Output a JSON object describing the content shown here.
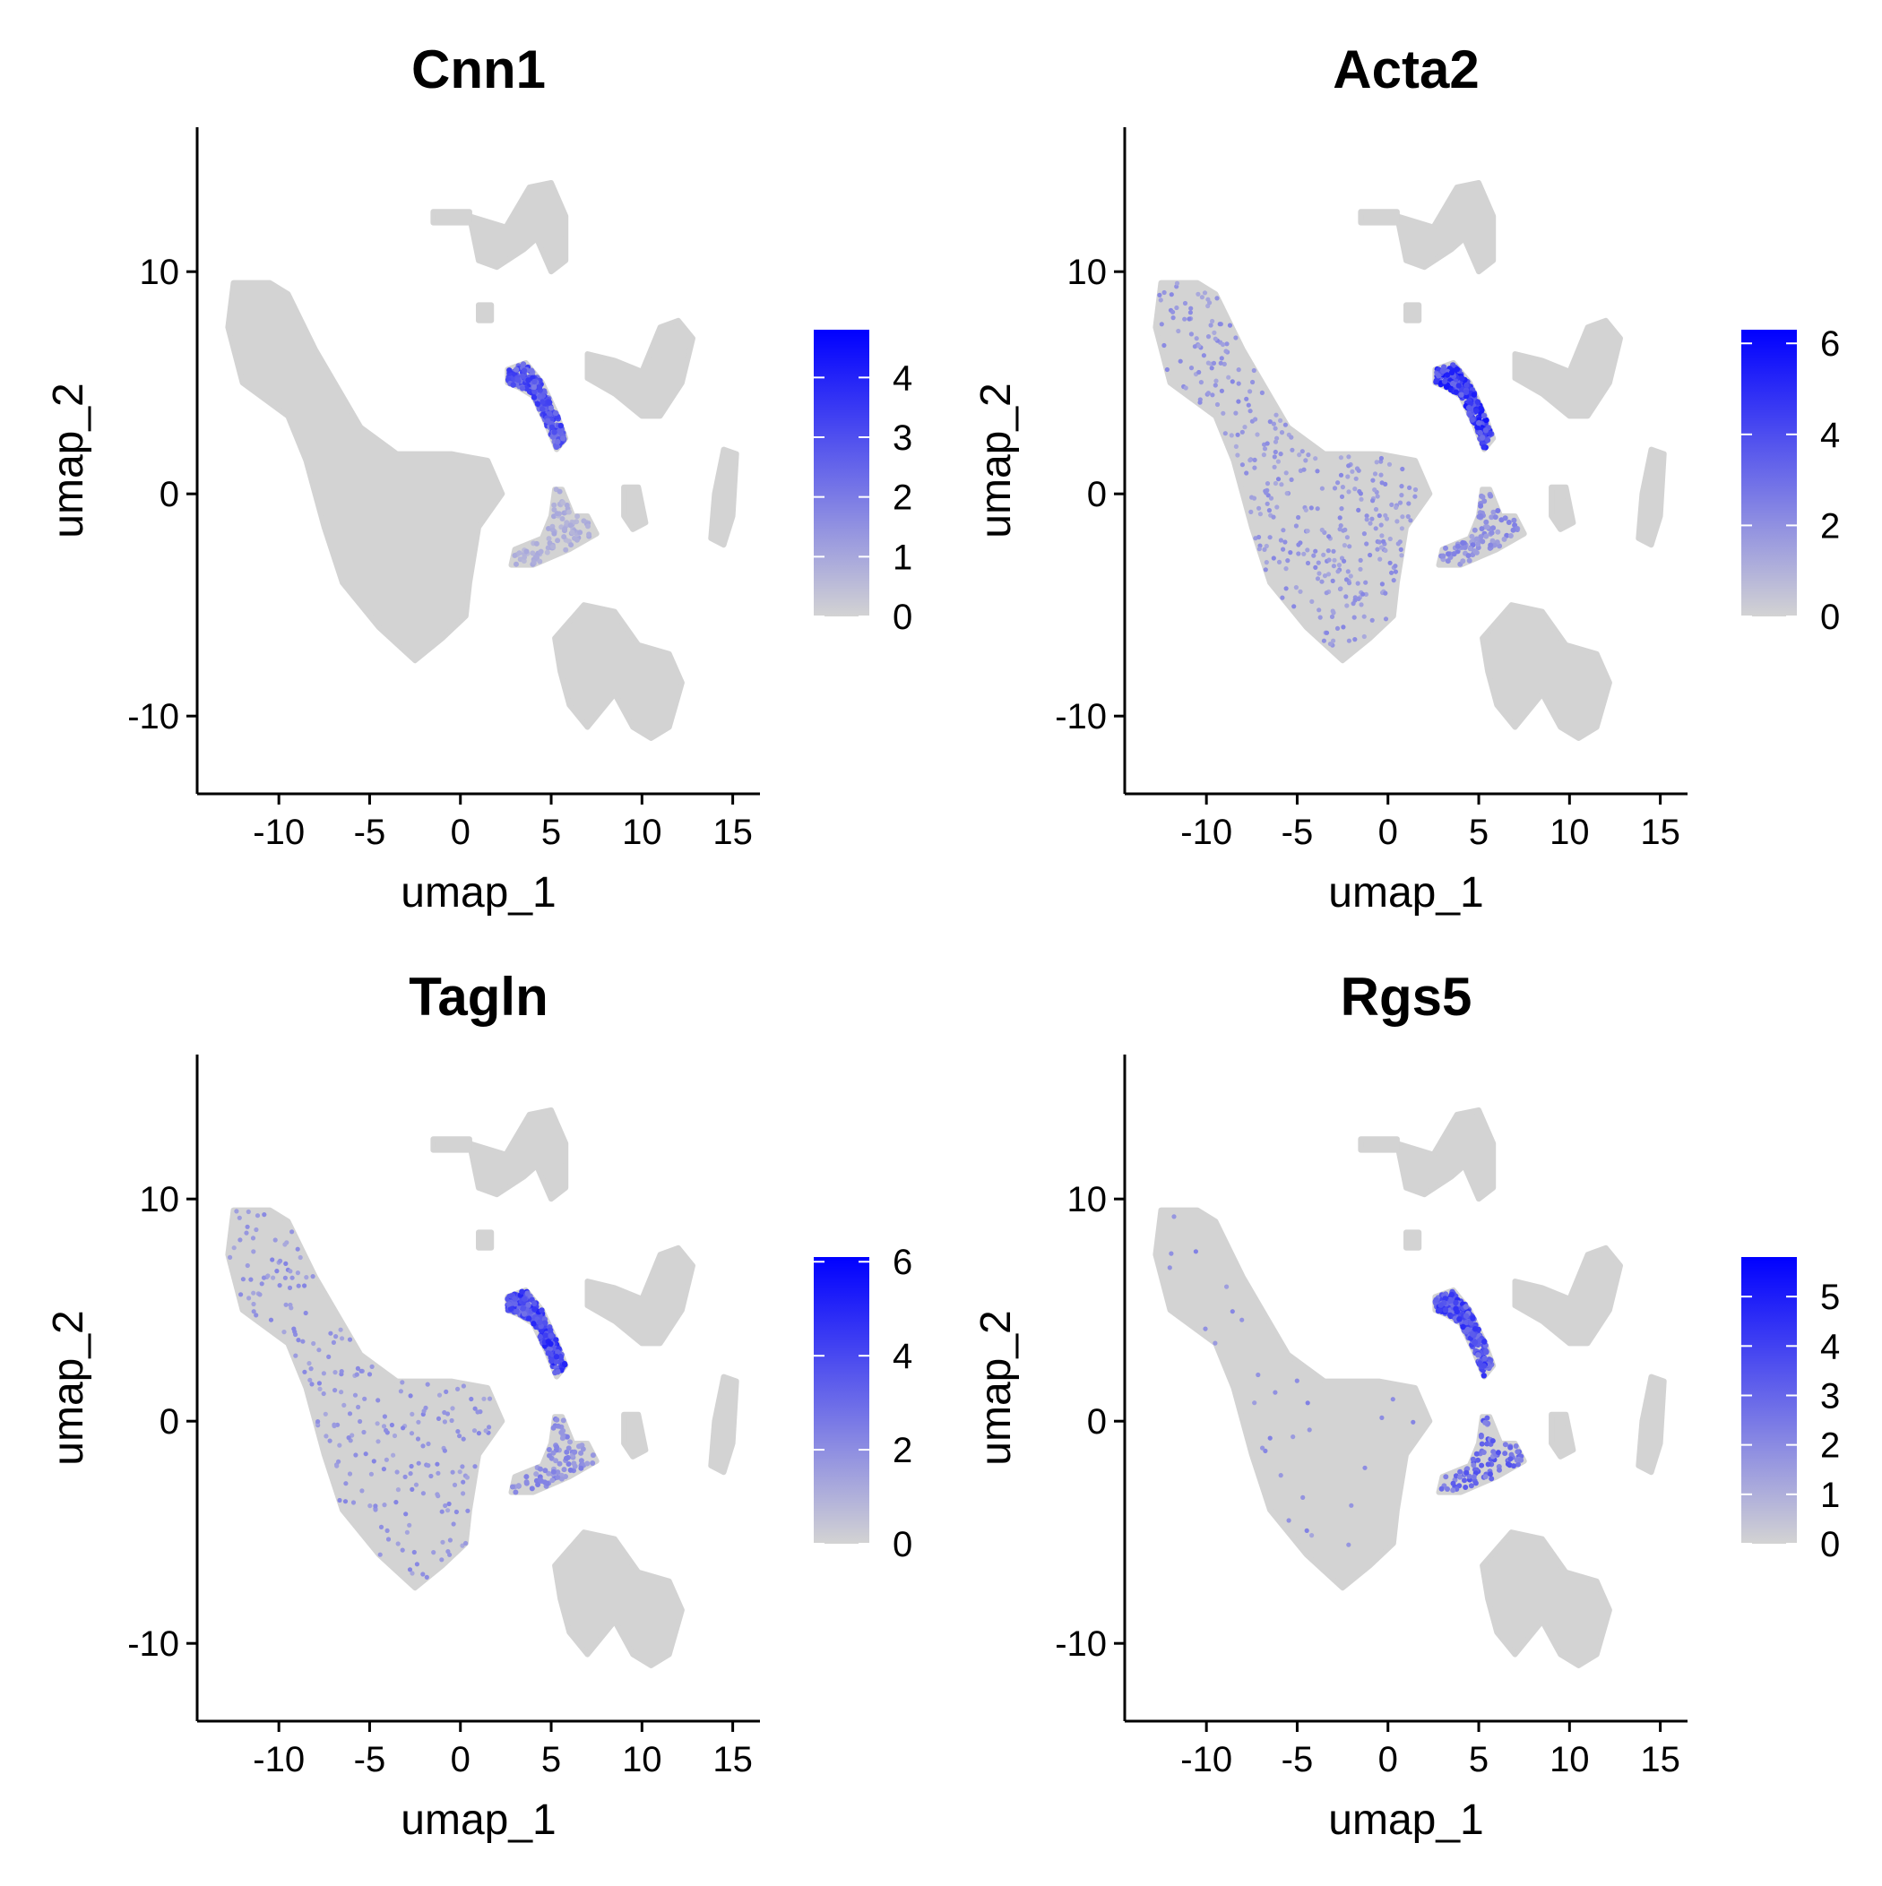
{
  "colors": {
    "low": "#d3d3d3",
    "high": "#0000ff",
    "axis": "#000000"
  },
  "chart_data": [
    {
      "type": "scatter",
      "title": "Cnn1",
      "xlabel": "umap_1",
      "ylabel": "umap_2",
      "xlim": [
        -14.5,
        16.5
      ],
      "ylim": [
        -13.5,
        16.5
      ],
      "xticks": [
        -10,
        -5,
        0,
        5,
        10,
        15
      ],
      "yticks": [
        -10,
        0,
        10
      ],
      "xtick_labels": [
        "-10",
        "-5",
        "0",
        "5",
        "10",
        "15"
      ],
      "ytick_labels": [
        "-10",
        "0",
        "10"
      ],
      "colorbar": {
        "min": 0,
        "max": 4.8,
        "ticks": [
          0,
          1,
          2,
          3,
          4
        ],
        "tick_labels": [
          "0",
          "1",
          "2",
          "3",
          "4"
        ]
      },
      "expression": {
        "cluster": 3.5,
        "lower_cluster": 1.0,
        "background": 0.0,
        "sparse_fraction": 0.0
      }
    },
    {
      "type": "scatter",
      "title": "Acta2",
      "xlabel": "umap_1",
      "ylabel": "umap_2",
      "xlim": [
        -14.5,
        16.5
      ],
      "ylim": [
        -13.5,
        16.5
      ],
      "xticks": [
        -10,
        -5,
        0,
        5,
        10,
        15
      ],
      "yticks": [
        -10,
        0,
        10
      ],
      "xtick_labels": [
        "-10",
        "-5",
        "0",
        "5",
        "10",
        "15"
      ],
      "ytick_labels": [
        "-10",
        "0",
        "10"
      ],
      "colorbar": {
        "min": 0,
        "max": 6.3,
        "ticks": [
          0,
          2,
          4,
          6
        ],
        "tick_labels": [
          "0",
          "2",
          "4",
          "6"
        ]
      },
      "expression": {
        "cluster": 5.5,
        "lower_cluster": 2.5,
        "background": 0.0,
        "sparse_fraction": 0.12
      }
    },
    {
      "type": "scatter",
      "title": "Tagln",
      "xlabel": "umap_1",
      "ylabel": "umap_2",
      "xlim": [
        -14.5,
        16.5
      ],
      "ylim": [
        -13.5,
        16.5
      ],
      "xticks": [
        -10,
        -5,
        0,
        5,
        10,
        15
      ],
      "yticks": [
        -10,
        0,
        10
      ],
      "xtick_labels": [
        "-10",
        "-5",
        "0",
        "5",
        "10",
        "15"
      ],
      "ytick_labels": [
        "-10",
        "0",
        "10"
      ],
      "colorbar": {
        "min": 0,
        "max": 6.1,
        "ticks": [
          0,
          2,
          4,
          6
        ],
        "tick_labels": [
          "0",
          "2",
          "4",
          "6"
        ]
      },
      "expression": {
        "cluster": 5.0,
        "lower_cluster": 2.5,
        "background": 0.0,
        "sparse_fraction": 0.08
      }
    },
    {
      "type": "scatter",
      "title": "Rgs5",
      "xlabel": "umap_1",
      "ylabel": "umap_2",
      "xlim": [
        -14.5,
        16.5
      ],
      "ylim": [
        -13.5,
        16.5
      ],
      "xticks": [
        -10,
        -5,
        0,
        5,
        10,
        15
      ],
      "yticks": [
        -10,
        0,
        10
      ],
      "xtick_labels": [
        "-10",
        "-5",
        "0",
        "5",
        "10",
        "15"
      ],
      "ytick_labels": [
        "-10",
        "0",
        "10"
      ],
      "colorbar": {
        "min": 0,
        "max": 5.8,
        "ticks": [
          0,
          1,
          2,
          3,
          4,
          5
        ],
        "tick_labels": [
          "0",
          "1",
          "2",
          "3",
          "4",
          "5"
        ]
      },
      "expression": {
        "cluster": 4.5,
        "lower_cluster": 3.5,
        "background": 0.0,
        "sparse_fraction": 0.01
      }
    }
  ],
  "clusters": [
    {
      "id": "large-cluster",
      "points": [
        [
          -12.5,
          9.5
        ],
        [
          -10.5,
          9.5
        ],
        [
          -9.5,
          9.0
        ],
        [
          -8.0,
          6.5
        ],
        [
          -5.5,
          3.0
        ],
        [
          -3.5,
          1.8
        ],
        [
          -0.5,
          1.8
        ],
        [
          1.5,
          1.5
        ],
        [
          2.3,
          0.0
        ],
        [
          1.0,
          -1.5
        ],
        [
          0.5,
          -4.0
        ],
        [
          0.3,
          -5.5
        ],
        [
          -1.0,
          -6.5
        ],
        [
          -2.5,
          -7.5
        ],
        [
          -4.5,
          -6.0
        ],
        [
          -6.5,
          -4.0
        ],
        [
          -7.5,
          -1.5
        ],
        [
          -8.5,
          1.5
        ],
        [
          -9.5,
          3.5
        ],
        [
          -12.0,
          5.0
        ],
        [
          -12.8,
          7.5
        ]
      ]
    },
    {
      "id": "top-cluster",
      "points": [
        [
          0.5,
          12.5
        ],
        [
          2.5,
          12.0
        ],
        [
          3.8,
          13.8
        ],
        [
          5.0,
          14.0
        ],
        [
          5.8,
          12.5
        ],
        [
          5.8,
          10.5
        ],
        [
          5.0,
          10.0
        ],
        [
          4.2,
          11.5
        ],
        [
          3.5,
          11.0
        ],
        [
          2.0,
          10.2
        ],
        [
          1.0,
          10.5
        ]
      ]
    },
    {
      "id": "top-stray",
      "points": [
        [
          -1.5,
          12.7
        ],
        [
          0.5,
          12.7
        ],
        [
          0.5,
          12.2
        ],
        [
          -1.5,
          12.2
        ]
      ]
    },
    {
      "id": "small-square",
      "points": [
        [
          1.0,
          8.5
        ],
        [
          1.7,
          8.5
        ],
        [
          1.7,
          7.8
        ],
        [
          1.0,
          7.8
        ]
      ]
    },
    {
      "id": "arc-cluster",
      "points": [
        [
          2.6,
          5.6
        ],
        [
          3.6,
          5.9
        ],
        [
          4.5,
          5.0
        ],
        [
          5.3,
          3.6
        ],
        [
          5.8,
          2.5
        ],
        [
          5.3,
          2.0
        ],
        [
          4.7,
          3.2
        ],
        [
          4.0,
          4.4
        ],
        [
          3.2,
          4.8
        ],
        [
          2.6,
          5.0
        ]
      ]
    },
    {
      "id": "right-cluster",
      "points": [
        [
          7.0,
          6.3
        ],
        [
          8.5,
          6.0
        ],
        [
          10.0,
          5.5
        ],
        [
          11.0,
          7.5
        ],
        [
          12.0,
          7.8
        ],
        [
          12.8,
          7.0
        ],
        [
          12.2,
          5.0
        ],
        [
          11.0,
          3.5
        ],
        [
          10.0,
          3.5
        ],
        [
          8.5,
          4.5
        ],
        [
          7.0,
          5.2
        ]
      ]
    },
    {
      "id": "thin-lower",
      "points": [
        [
          5.2,
          0.2
        ],
        [
          5.6,
          0.2
        ],
        [
          6.2,
          -1.0
        ],
        [
          7.0,
          -1.0
        ],
        [
          7.5,
          -1.8
        ],
        [
          6.0,
          -2.5
        ],
        [
          4.0,
          -3.2
        ],
        [
          2.8,
          -3.2
        ],
        [
          3.0,
          -2.5
        ],
        [
          4.5,
          -2.0
        ],
        [
          5.0,
          -1.0
        ]
      ]
    },
    {
      "id": "small-blob",
      "points": [
        [
          9.0,
          0.3
        ],
        [
          9.8,
          0.3
        ],
        [
          10.2,
          -1.3
        ],
        [
          9.5,
          -1.6
        ],
        [
          9.0,
          -1.0
        ]
      ]
    },
    {
      "id": "right-thin",
      "points": [
        [
          14.5,
          2.0
        ],
        [
          15.2,
          1.8
        ],
        [
          15.0,
          -1.0
        ],
        [
          14.5,
          -2.3
        ],
        [
          13.8,
          -2.0
        ],
        [
          14.0,
          0.0
        ]
      ]
    },
    {
      "id": "bottom-cluster",
      "points": [
        [
          5.2,
          -6.5
        ],
        [
          6.8,
          -5.0
        ],
        [
          8.5,
          -5.3
        ],
        [
          9.8,
          -6.8
        ],
        [
          11.5,
          -7.2
        ],
        [
          12.2,
          -8.5
        ],
        [
          11.5,
          -10.5
        ],
        [
          10.5,
          -11.0
        ],
        [
          9.5,
          -10.5
        ],
        [
          8.5,
          -9.0
        ],
        [
          7.0,
          -10.5
        ],
        [
          6.0,
          -9.5
        ],
        [
          5.5,
          -8.0
        ]
      ]
    }
  ]
}
